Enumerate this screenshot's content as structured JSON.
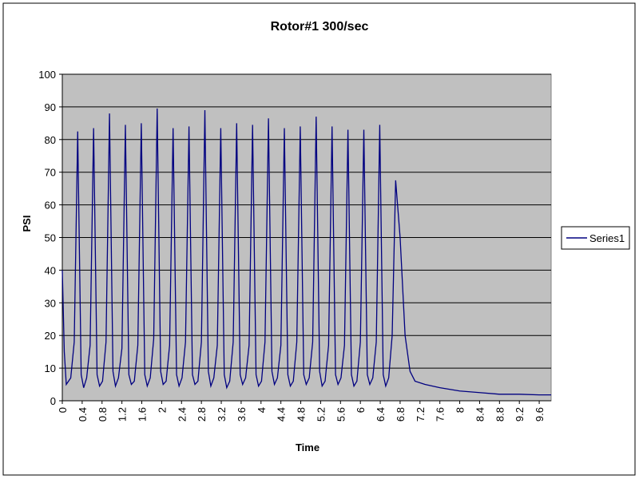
{
  "chart_data": {
    "type": "line",
    "title": "Rotor#1 300/sec",
    "x_label": "Time",
    "y_label": "PSI",
    "x": [
      0,
      0.04,
      0.08,
      0.17,
      0.24,
      0.31,
      0.38,
      0.43,
      0.49,
      0.56,
      0.63,
      0.7,
      0.75,
      0.81,
      0.88,
      0.95,
      1.02,
      1.07,
      1.13,
      1.2,
      1.27,
      1.34,
      1.39,
      1.45,
      1.52,
      1.59,
      1.66,
      1.71,
      1.77,
      1.84,
      1.91,
      1.98,
      2.03,
      2.09,
      2.16,
      2.23,
      2.3,
      2.35,
      2.41,
      2.48,
      2.55,
      2.62,
      2.67,
      2.73,
      2.8,
      2.87,
      2.94,
      2.99,
      3.05,
      3.12,
      3.19,
      3.26,
      3.31,
      3.37,
      3.44,
      3.51,
      3.58,
      3.63,
      3.69,
      3.76,
      3.83,
      3.9,
      3.95,
      4.01,
      4.08,
      4.15,
      4.22,
      4.27,
      4.33,
      4.4,
      4.47,
      4.54,
      4.59,
      4.65,
      4.72,
      4.79,
      4.86,
      4.91,
      4.97,
      5.04,
      5.11,
      5.18,
      5.23,
      5.29,
      5.36,
      5.43,
      5.5,
      5.55,
      5.61,
      5.68,
      5.75,
      5.82,
      5.87,
      5.93,
      6.0,
      6.07,
      6.14,
      6.19,
      6.25,
      6.32,
      6.39,
      6.46,
      6.51,
      6.57,
      6.64,
      6.71,
      6.8,
      6.9,
      7.0,
      7.1,
      7.3,
      7.6,
      8.0,
      8.4,
      8.8,
      9.2,
      9.6,
      9.84
    ],
    "series": [
      {
        "name": "Series1",
        "color": "#000080",
        "values": [
          40,
          15,
          5,
          7,
          18,
          82.5,
          8,
          4,
          7,
          17,
          83.5,
          8,
          4.5,
          6,
          18,
          88,
          9,
          4.5,
          7,
          16,
          84.5,
          8,
          5,
          6,
          17,
          85,
          8,
          4.5,
          7,
          19,
          89.5,
          9,
          5,
          6,
          17,
          83.5,
          8,
          4.5,
          7,
          18,
          84,
          8,
          5,
          6,
          18,
          89,
          9,
          4.5,
          7,
          17,
          83.5,
          8,
          4,
          6,
          18,
          85,
          8,
          5,
          7,
          17,
          84.5,
          8,
          4.5,
          6,
          18,
          86.5,
          9,
          5,
          7,
          17,
          83.5,
          8,
          4.5,
          6,
          18,
          84,
          8,
          5,
          7,
          18,
          87,
          9,
          4.5,
          6,
          17,
          84,
          8,
          5,
          7,
          17,
          83,
          8,
          4.5,
          6,
          18,
          83,
          8,
          5,
          7,
          18,
          84.5,
          8,
          4.5,
          7,
          20,
          67.5,
          50,
          20,
          9,
          6,
          5,
          4,
          3,
          2.5,
          2,
          2,
          1.8,
          1.8
        ]
      }
    ],
    "xlim": [
      0,
      9.84
    ],
    "ylim": [
      0,
      100
    ],
    "xticks": [
      0,
      0.4,
      0.8,
      1.2,
      1.6,
      2,
      2.4,
      2.8,
      3.2,
      3.6,
      4,
      4.4,
      4.8,
      5.2,
      5.6,
      6,
      6.4,
      6.8,
      7.2,
      7.6,
      8,
      8.4,
      8.8,
      9.2,
      9.6
    ],
    "yticks": [
      0,
      10,
      20,
      30,
      40,
      50,
      60,
      70,
      80,
      90,
      100
    ],
    "grid": true
  }
}
